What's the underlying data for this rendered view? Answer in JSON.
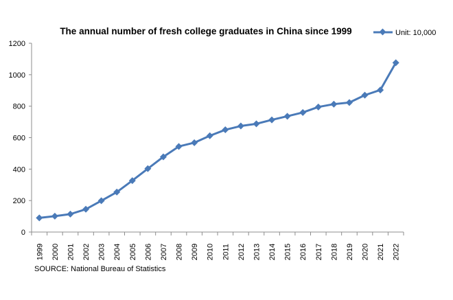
{
  "chart_data": {
    "type": "line",
    "title": "The annual number of fresh college graduates in China since 1999",
    "xlabel": "",
    "ylabel": "",
    "categories": [
      "1999",
      "2000",
      "2001",
      "2002",
      "2003",
      "2004",
      "2005",
      "2006",
      "2007",
      "2008",
      "2009",
      "2010",
      "2011",
      "2012",
      "2013",
      "2014",
      "2015",
      "2016",
      "2017",
      "2018",
      "2019",
      "2020",
      "2021",
      "2022"
    ],
    "series": [
      {
        "name": "Unit: 10,000",
        "values": [
          90,
          101,
          114,
          145,
          199,
          254,
          327,
          403,
          478,
          544,
          568,
          612,
          650,
          674,
          688,
          713,
          736,
          760,
          795,
          813,
          823,
          870,
          903,
          1076
        ]
      }
    ],
    "ylim": [
      0,
      1200
    ],
    "yticks": [
      "0",
      "200",
      "400",
      "600",
      "800",
      "1000",
      "1200"
    ],
    "grid": false,
    "legend": "top-right",
    "color": "#4a7ab8",
    "source": "SOURCE: National Bureau of Statistics"
  }
}
